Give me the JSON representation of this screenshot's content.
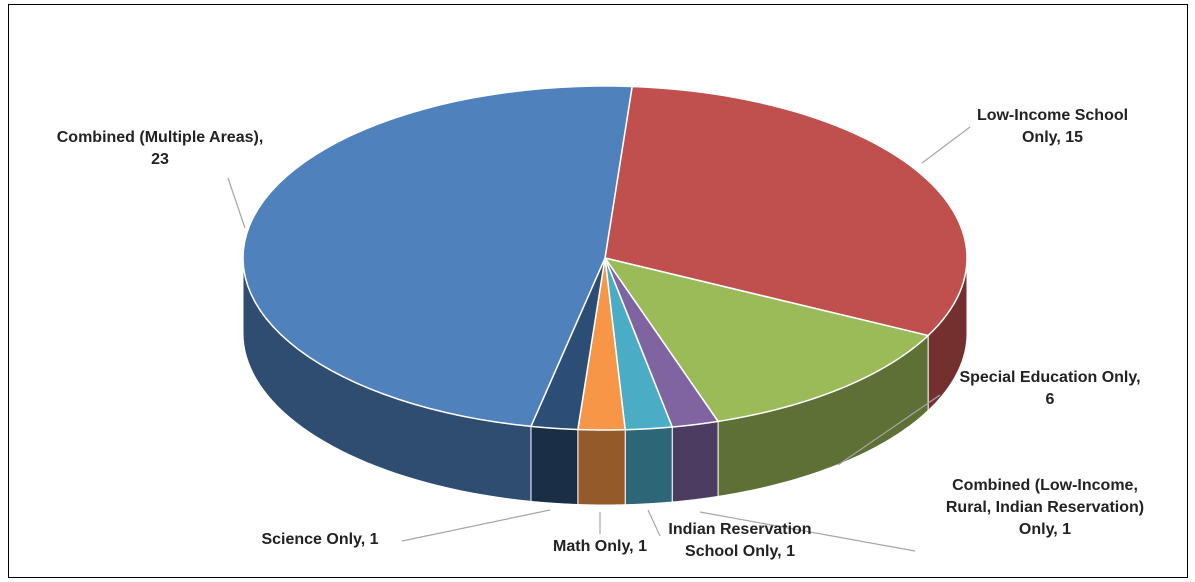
{
  "chart_data": {
    "type": "pie3d",
    "values": [
      15,
      6,
      1,
      1,
      1,
      1,
      23
    ],
    "value_labels": [
      "Low-Income School Only, 15",
      "Special Education Only, 6",
      "Combined (Low-Income, Rural, Indian Reservation) Only, 1",
      "Indian Reservation School Only, 1",
      "Math Only, 1",
      "Science Only, 1",
      "Combined (Multiple Areas), 23"
    ],
    "colors": [
      "#c0504d",
      "#9bbb59",
      "#8064a2",
      "#4bacc6",
      "#f79646",
      "#2c4d75",
      "#4f81bd"
    ]
  }
}
